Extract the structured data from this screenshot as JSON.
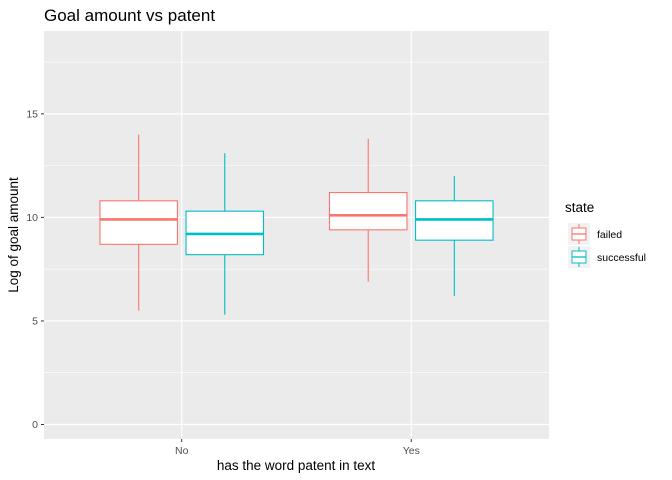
{
  "chart_data": {
    "type": "boxplot",
    "title": "Goal amount vs patent",
    "xlabel": "has the word patent in text",
    "ylabel": "Log of goal amount",
    "categories": [
      "No",
      "Yes"
    ],
    "ylim": [
      -0.7,
      19.0
    ],
    "yticks": [
      0,
      5,
      10,
      15
    ],
    "grid": true,
    "legend": {
      "title": "state",
      "position": "right"
    },
    "series": [
      {
        "name": "failed",
        "color": "#F8766D",
        "boxes": [
          {
            "category": "No",
            "whisker_low": 5.5,
            "q1": 8.7,
            "median": 9.9,
            "q3": 10.8,
            "whisker_high": 14.0
          },
          {
            "category": "Yes",
            "whisker_low": 6.9,
            "q1": 9.4,
            "median": 10.1,
            "q3": 11.2,
            "whisker_high": 13.8
          }
        ]
      },
      {
        "name": "successful",
        "color": "#00BFC4",
        "boxes": [
          {
            "category": "No",
            "whisker_low": 5.3,
            "q1": 8.2,
            "median": 9.2,
            "q3": 10.3,
            "whisker_high": 13.1
          },
          {
            "category": "Yes",
            "whisker_low": 6.2,
            "q1": 8.9,
            "median": 9.9,
            "q3": 10.8,
            "whisker_high": 12.0
          }
        ]
      }
    ]
  }
}
